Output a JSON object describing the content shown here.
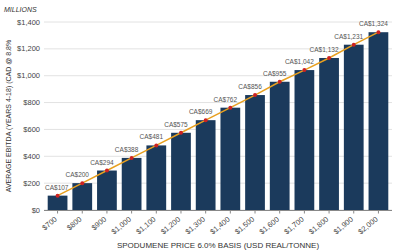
{
  "chart_data": {
    "type": "bar",
    "xlabel": "SPODUMENE PRICE 6.0% BASIS (USD REAL/TONNE)",
    "ylabel": "AVERAGE EBITDA (YEARS 4-18) (CAD @ 8.8%",
    "annotations": [
      {
        "text": "MILLIONS"
      }
    ],
    "x": [
      700,
      800,
      900,
      1000,
      1100,
      1200,
      1300,
      1400,
      1500,
      1600,
      1700,
      1800,
      1900,
      2000
    ],
    "xlim": [
      645,
      2055
    ],
    "xticks": [
      {
        "value": 700,
        "label": "$700"
      },
      {
        "value": 800,
        "label": "$800"
      },
      {
        "value": 900,
        "label": "$900"
      },
      {
        "value": 1000,
        "label": "$1,000"
      },
      {
        "value": 1100,
        "label": "$1,100"
      },
      {
        "value": 1200,
        "label": "$1,200"
      },
      {
        "value": 1300,
        "label": "$1,300"
      },
      {
        "value": 1400,
        "label": "$1,400"
      },
      {
        "value": 1500,
        "label": "$1,500"
      },
      {
        "value": 1600,
        "label": "$1,600"
      },
      {
        "value": 1700,
        "label": "$1,700"
      },
      {
        "value": 1800,
        "label": "$1,800"
      },
      {
        "value": 1900,
        "label": "$1,900"
      },
      {
        "value": 2000,
        "label": "$2,000"
      }
    ],
    "ylim": [
      0,
      1400
    ],
    "yticks": [
      {
        "value": 0,
        "label": "$0"
      },
      {
        "value": 200,
        "label": "$200"
      },
      {
        "value": 400,
        "label": "$400"
      },
      {
        "value": 600,
        "label": "$600"
      },
      {
        "value": 800,
        "label": "$800"
      },
      {
        "value": 1000,
        "label": "$1,000"
      },
      {
        "value": 1200,
        "label": "$1,200"
      },
      {
        "value": 1400,
        "label": "$1,400"
      }
    ],
    "grid": true,
    "data_labels": true,
    "series": [
      {
        "type": "bar",
        "color": "#1b3a5c",
        "values": [
          107,
          200,
          294,
          388,
          481,
          575,
          669,
          762,
          856,
          955,
          1042,
          1132,
          1231,
          1324
        ]
      },
      {
        "type": "line",
        "color": "#e8a020",
        "values": [
          107,
          200,
          294,
          388,
          481,
          575,
          669,
          762,
          856,
          955,
          1042,
          1132,
          1231,
          1324
        ]
      },
      {
        "type": "scatter",
        "color": "#cc2222",
        "marker": "circle",
        "values": [
          107,
          200,
          294,
          388,
          481,
          575,
          669,
          762,
          856,
          955,
          1042,
          1132,
          1231,
          1324
        ],
        "value_labels": [
          "CA$107",
          "CA$200",
          "CA$294",
          "CA$388",
          "CA$481",
          "CA$575",
          "CA$669",
          "CA$762",
          "CA$856",
          "CA$955",
          "CA$1,042",
          "CA$1,132",
          "CA$1,231",
          "CA$1,324"
        ]
      }
    ]
  }
}
